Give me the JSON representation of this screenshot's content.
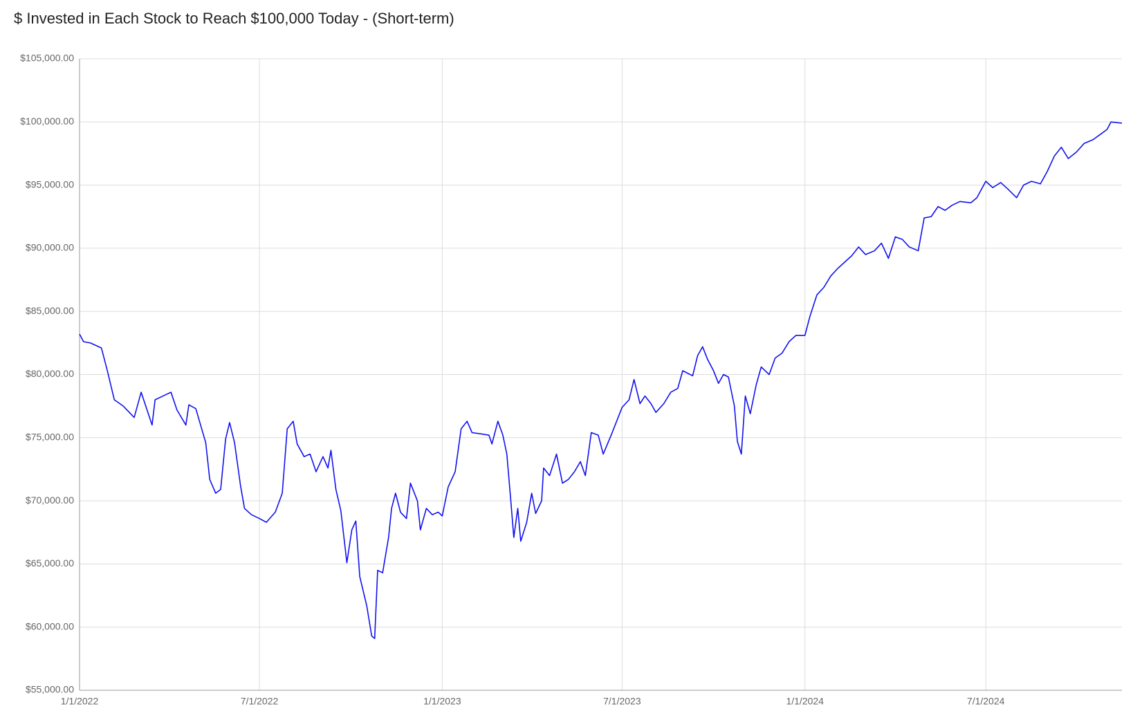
{
  "chart_data": {
    "type": "line",
    "title": "$ Invested in Each Stock to Reach $100,000 Today - (Short-term)",
    "x": [
      "1/1/2022",
      "1/5/2022",
      "1/12/2022",
      "1/23/2022",
      "1/29/2022",
      "2/5/2022",
      "2/14/2022",
      "2/25/2022",
      "3/4/2022",
      "3/15/2022",
      "3/18/2022",
      "3/26/2022",
      "4/3/2022",
      "4/9/2022",
      "4/18/2022",
      "4/21/2022",
      "4/28/2022",
      "5/8/2022",
      "5/12/2022",
      "5/18/2022",
      "5/23/2022",
      "5/28/2022",
      "6/1/2022",
      "6/6/2022",
      "6/12/2022",
      "6/16/2022",
      "6/23/2022",
      "7/1/2022",
      "7/8/2022",
      "7/17/2022",
      "7/24/2022",
      "7/29/2022",
      "8/4/2022",
      "8/8/2022",
      "8/15/2022",
      "8/21/2022",
      "8/27/2022",
      "9/3/2022",
      "9/8/2022",
      "9/11/2022",
      "9/16/2022",
      "9/21/2022",
      "9/27/2022",
      "10/2/2022",
      "10/6/2022",
      "10/10/2022",
      "10/17/2022",
      "10/22/2022",
      "10/25/2022",
      "10/28/2022",
      "11/2/2022",
      "11/8/2022",
      "11/11/2022",
      "11/15/2022",
      "11/20/2022",
      "11/26/2022",
      "11/30/2022",
      "12/7/2022",
      "12/10/2022",
      "12/16/2022",
      "12/22/2022",
      "12/28/2022",
      "1/1/2023",
      "1/7/2023",
      "1/14/2023",
      "1/20/2023",
      "1/26/2023",
      "1/31/2023",
      "2/9/2023",
      "2/17/2023",
      "2/20/2023",
      "2/26/2023",
      "3/3/2023",
      "3/7/2023",
      "3/11/2023",
      "3/14/2023",
      "3/18/2023",
      "3/21/2023",
      "3/27/2023",
      "4/1/2023",
      "4/5/2023",
      "4/11/2023",
      "4/13/2023",
      "4/19/2023",
      "4/26/2023",
      "5/2/2023",
      "5/8/2023",
      "5/14/2023",
      "5/20/2023",
      "5/25/2023",
      "5/31/2023",
      "6/7/2023",
      "6/12/2023",
      "6/20/2023",
      "7/1/2023",
      "7/8/2023",
      "7/13/2023",
      "7/19/2023",
      "7/24/2023",
      "7/30/2023",
      "8/4/2023",
      "8/12/2023",
      "8/19/2023",
      "8/26/2023",
      "8/31/2023",
      "9/10/2023",
      "9/15/2023",
      "9/20/2023",
      "9/25/2023",
      "10/1/2023",
      "10/6/2023",
      "10/11/2023",
      "10/16/2023",
      "10/22/2023",
      "10/25/2023",
      "10/29/2023",
      "11/2/2023",
      "11/7/2023",
      "11/13/2023",
      "11/18/2023",
      "11/26/2023",
      "12/2/2023",
      "12/9/2023",
      "12/16/2023",
      "12/23/2023",
      "1/1/2024",
      "1/6/2024",
      "1/13/2024",
      "1/20/2024",
      "1/27/2024",
      "2/3/2024",
      "2/10/2024",
      "2/17/2024",
      "2/24/2024",
      "3/2/2024",
      "3/11/2024",
      "3/18/2024",
      "3/25/2024",
      "4/1/2024",
      "4/8/2024",
      "4/15/2024",
      "4/24/2024",
      "4/30/2024",
      "5/7/2024",
      "5/14/2024",
      "5/21/2024",
      "5/28/2024",
      "6/5/2024",
      "6/16/2024",
      "6/22/2024",
      "7/1/2024",
      "7/8/2024",
      "7/16/2024",
      "7/23/2024",
      "8/1/2024",
      "8/8/2024",
      "8/16/2024",
      "8/25/2024",
      "9/1/2024",
      "9/8/2024",
      "9/15/2024",
      "9/22/2024",
      "9/30/2024",
      "10/8/2024",
      "10/17/2024",
      "10/24/2024",
      "10/31/2024",
      "11/4/2024",
      "11/15/2024"
    ],
    "series": [
      {
        "color": "#1010ee",
        "values": [
          83200,
          82600,
          82500,
          82100,
          80300,
          78000,
          77500,
          76600,
          78600,
          76000,
          78000,
          78300,
          78600,
          77200,
          76000,
          77600,
          77300,
          74600,
          71700,
          70600,
          70900,
          74900,
          76200,
          74600,
          71200,
          69400,
          68900,
          68600,
          68300,
          69100,
          70600,
          75700,
          76300,
          74500,
          73500,
          73700,
          72300,
          73500,
          72600,
          74000,
          70900,
          69200,
          65100,
          67700,
          68400,
          64000,
          61700,
          59300,
          59100,
          64500,
          64300,
          67100,
          69400,
          70600,
          69100,
          68600,
          71400,
          70000,
          67700,
          69400,
          68900,
          69100,
          68800,
          71100,
          72300,
          75700,
          76300,
          75400,
          75300,
          75200,
          74500,
          76300,
          75200,
          73700,
          70000,
          67100,
          69400,
          66800,
          68300,
          70600,
          69000,
          70000,
          72600,
          72000,
          73700,
          71400,
          71700,
          72300,
          73100,
          72000,
          75400,
          75200,
          73700,
          75200,
          77400,
          78000,
          79600,
          77700,
          78300,
          77700,
          77000,
          77700,
          78600,
          78900,
          80300,
          79900,
          81500,
          82200,
          81200,
          80300,
          79300,
          80000,
          79800,
          77500,
          74700,
          73700,
          78300,
          76900,
          79200,
          80600,
          80000,
          81300,
          81700,
          82600,
          83100,
          83100,
          84600,
          86300,
          86900,
          87800,
          88400,
          88900,
          89400,
          90100,
          89500,
          89800,
          90400,
          89200,
          90900,
          90700,
          90100,
          89800,
          92400,
          92500,
          93300,
          93000,
          93400,
          93700,
          93600,
          94000,
          95300,
          94800,
          95200,
          94700,
          94000,
          95000,
          95300,
          95100,
          96100,
          97300,
          98000,
          97100,
          97600,
          98300,
          98600,
          99000,
          99400,
          100000,
          99900
        ]
      }
    ],
    "xlim": [
      "1/1/2022",
      "11/15/2024"
    ],
    "xticks": [
      "1/1/2022",
      "7/1/2022",
      "1/1/2023",
      "7/1/2023",
      "1/1/2024",
      "7/1/2024"
    ],
    "ylim": [
      55000,
      105000
    ],
    "yticks": [
      {
        "value": 55000,
        "label": "$55,000.00"
      },
      {
        "value": 60000,
        "label": "$60,000.00"
      },
      {
        "value": 65000,
        "label": "$65,000.00"
      },
      {
        "value": 70000,
        "label": "$70,000.00"
      },
      {
        "value": 75000,
        "label": "$75,000.00"
      },
      {
        "value": 80000,
        "label": "$80,000.00"
      },
      {
        "value": 85000,
        "label": "$85,000.00"
      },
      {
        "value": 90000,
        "label": "$90,000.00"
      },
      {
        "value": 95000,
        "label": "$95,000.00"
      },
      {
        "value": 100000,
        "label": "$100,000.00"
      },
      {
        "value": 105000,
        "label": "$105,000.00"
      }
    ],
    "grid": true
  }
}
